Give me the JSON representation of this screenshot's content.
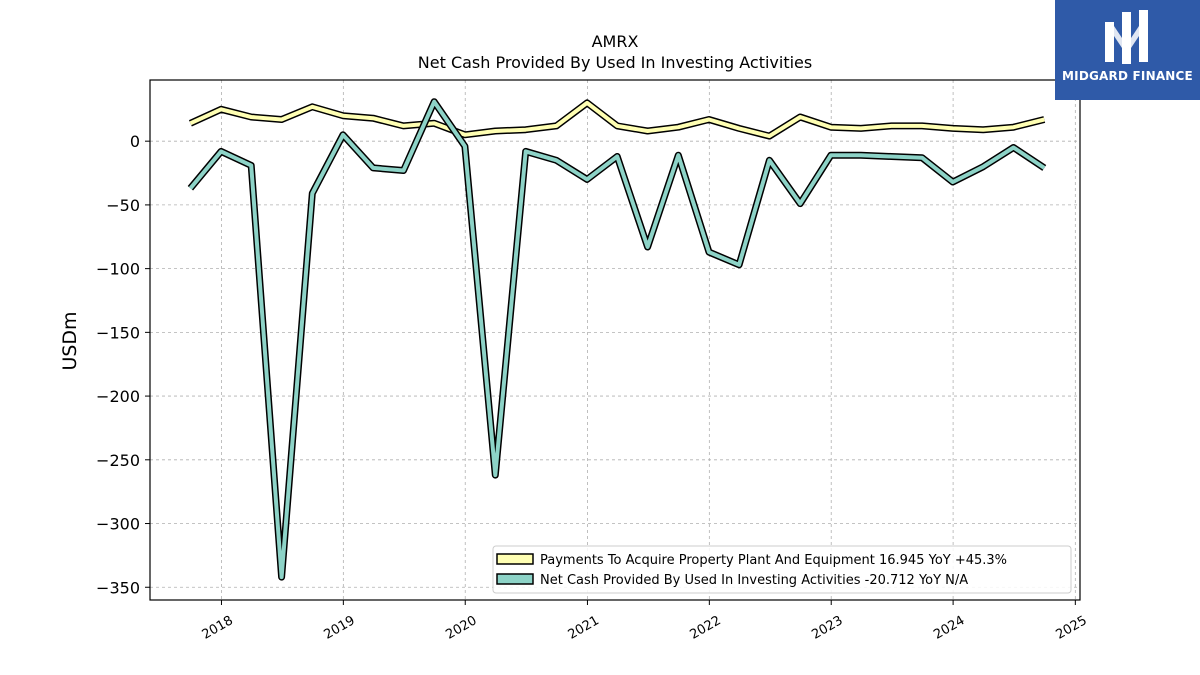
{
  "brand": {
    "name": "MIDGARD FINANCE",
    "logo_icon": "midgard-m-logo-icon",
    "color": "#2f5aa8"
  },
  "chart_data": {
    "type": "line",
    "title": "AMRX",
    "subtitle": "Net Cash Provided By Used In Investing Activities",
    "ylabel": "USDm",
    "xlabel": "",
    "xlim": [
      "2017-06-01",
      "2025-01-15"
    ],
    "ylim": [
      -360,
      48
    ],
    "yticks": [
      0,
      -50,
      -100,
      -150,
      -200,
      -250,
      -300,
      -350
    ],
    "ytick_labels": [
      "0",
      "−50",
      "−100",
      "−150",
      "−200",
      "−250",
      "−300",
      "−350"
    ],
    "xticks": [
      "2018-01-01",
      "2019-01-01",
      "2020-01-01",
      "2021-01-01",
      "2022-01-01",
      "2023-01-01",
      "2024-01-01",
      "2025-01-01"
    ],
    "xtick_labels": [
      "2018",
      "2019",
      "2020",
      "2021",
      "2022",
      "2023",
      "2024",
      "2025"
    ],
    "grid": true,
    "legend_position": "lower-right",
    "x": [
      "2017-09-30",
      "2017-12-31",
      "2018-03-31",
      "2018-06-30",
      "2018-09-30",
      "2018-12-31",
      "2019-03-31",
      "2019-06-30",
      "2019-09-30",
      "2019-12-31",
      "2020-03-31",
      "2020-06-30",
      "2020-09-30",
      "2020-12-31",
      "2021-03-31",
      "2021-06-30",
      "2021-09-30",
      "2021-12-31",
      "2022-03-31",
      "2022-06-30",
      "2022-09-30",
      "2022-12-31",
      "2023-03-31",
      "2023-06-30",
      "2023-09-30",
      "2023-12-31",
      "2024-03-31",
      "2024-06-30",
      "2024-09-30"
    ],
    "series": [
      {
        "name": "Payments To Acquire Property Plant And Equipment",
        "legend_label": "Payments To Acquire Property Plant And Equipment  16.945 YoY +45.3%",
        "color": "#ffffb3",
        "values": [
          14,
          25,
          19,
          17,
          27,
          20,
          18,
          12,
          14,
          5,
          8,
          9,
          12,
          30,
          12,
          8,
          11,
          17,
          10,
          4,
          19,
          11,
          10,
          12,
          12,
          10,
          9,
          11,
          17
        ]
      },
      {
        "name": "Net Cash Provided By Used In Investing Activities",
        "legend_label": "Net Cash Provided By Used In Investing Activities  -20.712 YoY N/A",
        "color": "#8dd3c7",
        "values": [
          -37,
          -8,
          -19,
          -342,
          -41,
          5,
          -21,
          -23,
          31,
          -4,
          -262,
          -8,
          -15,
          -30,
          -12,
          -83,
          -11,
          -87,
          -97,
          -15,
          -49,
          -11,
          -11,
          -12,
          -13,
          -32,
          -20,
          -5,
          -21
        ]
      }
    ]
  }
}
